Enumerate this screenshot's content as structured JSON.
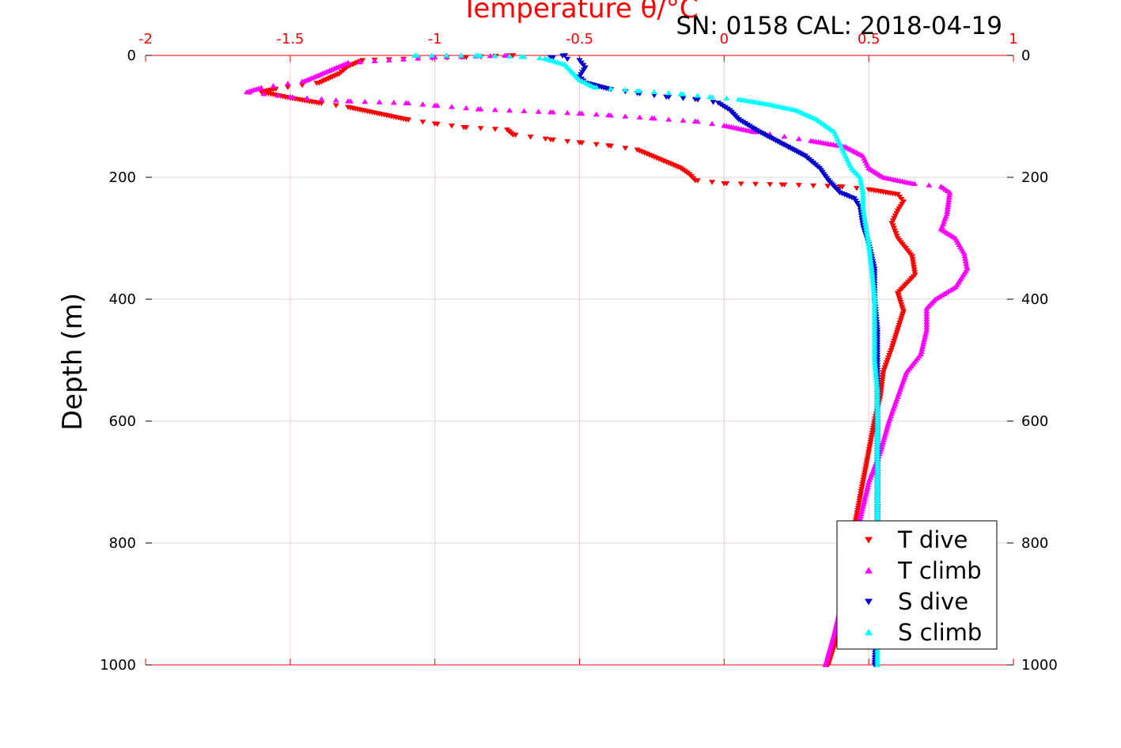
{
  "chart_data": {
    "type": "scatter",
    "title": "Temperature θ/°C",
    "subtitle": "SN: 0158  CAL: 2018-04-19",
    "xlabel": "Temperature θ/°C",
    "ylabel": "Depth (m)",
    "xlim": [
      -2,
      1
    ],
    "ylim": [
      0,
      1000
    ],
    "y_reversed": true,
    "x_ticks": [
      "-2",
      "-1.5",
      "-1",
      "-0.5",
      "0",
      "0.5",
      "1"
    ],
    "y_ticks": [
      "0",
      "200",
      "400",
      "600",
      "800",
      "1000"
    ],
    "grid": true,
    "legend_position": "bottom-right",
    "series": [
      {
        "name": "T dive",
        "marker": "triangle-down",
        "color": "#ff0000",
        "points": [
          [
            -0.73,
            0
          ],
          [
            -0.9,
            3
          ],
          [
            -1.25,
            8
          ],
          [
            -1.3,
            18
          ],
          [
            -1.33,
            30
          ],
          [
            -1.4,
            45
          ],
          [
            -1.55,
            55
          ],
          [
            -1.6,
            60
          ],
          [
            -1.5,
            70
          ],
          [
            -1.4,
            78
          ],
          [
            -1.3,
            85
          ],
          [
            -1.2,
            95
          ],
          [
            -1.1,
            105
          ],
          [
            -1.0,
            112
          ],
          [
            -0.9,
            118
          ],
          [
            -0.75,
            122
          ],
          [
            -0.73,
            130
          ],
          [
            -0.6,
            138
          ],
          [
            -0.5,
            143
          ],
          [
            -0.4,
            148
          ],
          [
            -0.3,
            155
          ],
          [
            -0.25,
            165
          ],
          [
            -0.2,
            175
          ],
          [
            -0.15,
            185
          ],
          [
            -0.12,
            195
          ],
          [
            -0.1,
            205
          ],
          [
            0.0,
            210
          ],
          [
            0.2,
            212
          ],
          [
            0.4,
            215
          ],
          [
            0.5,
            220
          ],
          [
            0.6,
            228
          ],
          [
            0.62,
            240
          ],
          [
            0.6,
            255
          ],
          [
            0.58,
            275
          ],
          [
            0.6,
            300
          ],
          [
            0.65,
            330
          ],
          [
            0.66,
            360
          ],
          [
            0.6,
            390
          ],
          [
            0.62,
            420
          ],
          [
            0.6,
            450
          ],
          [
            0.58,
            480
          ],
          [
            0.55,
            520
          ],
          [
            0.54,
            560
          ],
          [
            0.52,
            600
          ],
          [
            0.5,
            650
          ],
          [
            0.48,
            700
          ],
          [
            0.46,
            750
          ],
          [
            0.44,
            800
          ],
          [
            0.42,
            860
          ],
          [
            0.4,
            920
          ],
          [
            0.38,
            970
          ],
          [
            0.36,
            1000
          ]
        ]
      },
      {
        "name": "T climb",
        "marker": "triangle-up",
        "color": "#ff00ff",
        "points": [
          [
            -0.75,
            0
          ],
          [
            -1.0,
            3
          ],
          [
            -1.3,
            12
          ],
          [
            -1.38,
            28
          ],
          [
            -1.45,
            42
          ],
          [
            -1.6,
            53
          ],
          [
            -1.65,
            60
          ],
          [
            -1.5,
            68
          ],
          [
            -1.3,
            75
          ],
          [
            -1.1,
            78
          ],
          [
            -1.0,
            82
          ],
          [
            -0.85,
            88
          ],
          [
            -0.6,
            93
          ],
          [
            -0.5,
            95
          ],
          [
            -0.4,
            98
          ],
          [
            -0.25,
            103
          ],
          [
            -0.1,
            108
          ],
          [
            0.0,
            115
          ],
          [
            0.1,
            125
          ],
          [
            0.3,
            140
          ],
          [
            0.42,
            150
          ],
          [
            0.48,
            165
          ],
          [
            0.5,
            185
          ],
          [
            0.55,
            200
          ],
          [
            0.65,
            210
          ],
          [
            0.75,
            215
          ],
          [
            0.78,
            225
          ],
          [
            0.77,
            260
          ],
          [
            0.75,
            285
          ],
          [
            0.8,
            300
          ],
          [
            0.83,
            325
          ],
          [
            0.84,
            350
          ],
          [
            0.8,
            380
          ],
          [
            0.73,
            400
          ],
          [
            0.7,
            415
          ],
          [
            0.7,
            450
          ],
          [
            0.68,
            490
          ],
          [
            0.63,
            520
          ],
          [
            0.6,
            560
          ],
          [
            0.57,
            600
          ],
          [
            0.54,
            650
          ],
          [
            0.5,
            700
          ],
          [
            0.47,
            760
          ],
          [
            0.44,
            820
          ],
          [
            0.41,
            890
          ],
          [
            0.38,
            950
          ],
          [
            0.35,
            1000
          ]
        ]
      },
      {
        "name": "S dive",
        "marker": "triangle-down",
        "color": "#0000cc",
        "points": [
          [
            -0.55,
            0
          ],
          [
            -0.6,
            3
          ],
          [
            -0.5,
            8
          ],
          [
            -0.48,
            20
          ],
          [
            -0.5,
            35
          ],
          [
            -0.48,
            45
          ],
          [
            -0.4,
            55
          ],
          [
            -0.3,
            62
          ],
          [
            -0.2,
            68
          ],
          [
            -0.1,
            72
          ],
          [
            -0.02,
            78
          ],
          [
            0.02,
            90
          ],
          [
            0.05,
            105
          ],
          [
            0.12,
            125
          ],
          [
            0.2,
            145
          ],
          [
            0.28,
            165
          ],
          [
            0.33,
            185
          ],
          [
            0.36,
            205
          ],
          [
            0.4,
            225
          ],
          [
            0.45,
            235
          ],
          [
            0.47,
            250
          ],
          [
            0.48,
            280
          ],
          [
            0.5,
            310
          ],
          [
            0.52,
            350
          ],
          [
            0.52,
            400
          ],
          [
            0.53,
            450
          ],
          [
            0.53,
            500
          ],
          [
            0.53,
            550
          ],
          [
            0.53,
            600
          ],
          [
            0.53,
            700
          ],
          [
            0.53,
            800
          ],
          [
            0.53,
            900
          ],
          [
            0.52,
            1000
          ]
        ]
      },
      {
        "name": "S climb",
        "marker": "triangle-up",
        "color": "#00ffff",
        "points": [
          [
            -1.07,
            0
          ],
          [
            -0.85,
            0
          ],
          [
            -0.7,
            2
          ],
          [
            -0.62,
            5
          ],
          [
            -0.55,
            15
          ],
          [
            -0.5,
            40
          ],
          [
            -0.45,
            52
          ],
          [
            -0.3,
            58
          ],
          [
            -0.15,
            63
          ],
          [
            -0.05,
            68
          ],
          [
            0.05,
            72
          ],
          [
            0.15,
            80
          ],
          [
            0.25,
            90
          ],
          [
            0.32,
            105
          ],
          [
            0.38,
            125
          ],
          [
            0.4,
            145
          ],
          [
            0.42,
            165
          ],
          [
            0.44,
            185
          ],
          [
            0.47,
            200
          ],
          [
            0.48,
            225
          ],
          [
            0.48,
            250
          ],
          [
            0.49,
            280
          ],
          [
            0.5,
            310
          ],
          [
            0.51,
            350
          ],
          [
            0.52,
            400
          ],
          [
            0.52,
            450
          ],
          [
            0.52,
            500
          ],
          [
            0.53,
            550
          ],
          [
            0.53,
            600
          ],
          [
            0.53,
            700
          ],
          [
            0.53,
            800
          ],
          [
            0.53,
            900
          ],
          [
            0.53,
            1000
          ]
        ]
      }
    ]
  }
}
